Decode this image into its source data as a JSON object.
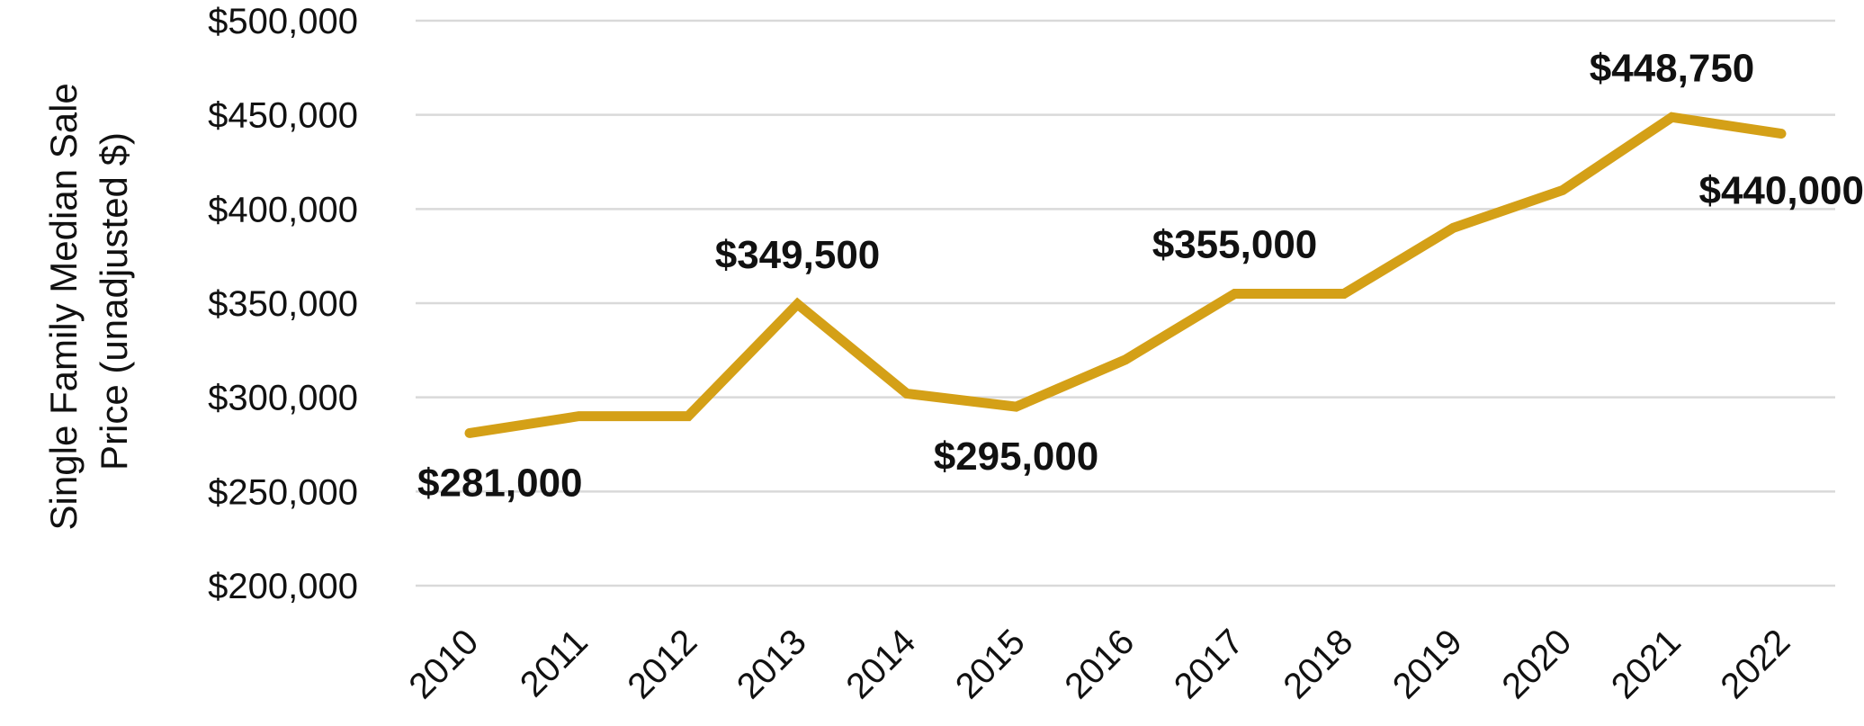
{
  "chart_data": {
    "type": "line",
    "title": "",
    "xlabel": "",
    "ylabel": [
      "Single Family Median Sale",
      "Price (unadjusted $)"
    ],
    "categories": [
      "2010",
      "2011",
      "2012",
      "2013",
      "2014",
      "2015",
      "2016",
      "2017",
      "2018",
      "2019",
      "2020",
      "2021",
      "2022"
    ],
    "series": [
      {
        "values": [
          281000,
          290000,
          290000,
          349500,
          302000,
          295000,
          320000,
          355000,
          355000,
          390000,
          410000,
          448750,
          440000
        ],
        "color": "#d4a017"
      }
    ],
    "ylim": [
      200000,
      500000
    ],
    "yticks": [
      200000,
      250000,
      300000,
      350000,
      400000,
      450000,
      500000
    ],
    "ytick_labels": [
      "$200,000",
      "$250,000",
      "$300,000",
      "$350,000",
      "$400,000",
      "$450,000",
      "$500,000"
    ],
    "grid": true,
    "legend": "none",
    "data_labels": [
      {
        "category": "2010",
        "text": "$281,000",
        "position": "below"
      },
      {
        "category": "2013",
        "text": "$349,500",
        "position": "above"
      },
      {
        "category": "2015",
        "text": "$295,000",
        "position": "below"
      },
      {
        "category": "2017",
        "text": "$355,000",
        "position": "above"
      },
      {
        "category": "2021",
        "text": "$448,750",
        "position": "above"
      },
      {
        "category": "2022",
        "text": "$440,000",
        "position": "below"
      }
    ]
  }
}
